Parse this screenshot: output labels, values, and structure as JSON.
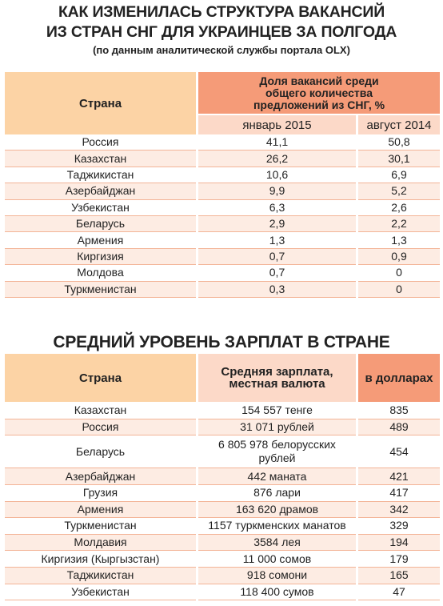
{
  "header": {
    "title_lines": [
      "КАК ИЗМЕНИЛАСЬ СТРУКТУРА ВАКАНСИЙ",
      "ИЗ СТРАН СНГ ДЛЯ УКРАИНЦЕВ ЗА ПОЛГОДА"
    ],
    "subtitle": "(по данным аналитической службы портала OLX)"
  },
  "table1": {
    "country_header": "Страна",
    "group_header": "Доля вакансий среди общего количества предложений из СНГ, %",
    "sub_headers": [
      "январь 2015",
      "август 2014"
    ],
    "rows": [
      [
        "Россия",
        "41,1",
        "50,8"
      ],
      [
        "Казахстан",
        "26,2",
        "30,1"
      ],
      [
        "Таджикистан",
        "10,6",
        "6,9"
      ],
      [
        "Азербайджан",
        "9,9",
        "5,2"
      ],
      [
        "Узбекистан",
        "6,3",
        "2,6"
      ],
      [
        "Беларусь",
        "2,9",
        "2,2"
      ],
      [
        "Армения",
        "1,3",
        "1,3"
      ],
      [
        "Киргизия",
        "0,7",
        "0,9"
      ],
      [
        "Молдова",
        "0,7",
        "0"
      ],
      [
        "Туркменистан",
        "0,3",
        "0"
      ]
    ]
  },
  "table2": {
    "title": "СРЕДНИЙ УРОВЕНЬ ЗАРПЛАТ В СТРАНЕ",
    "headers": [
      "Страна",
      "Средняя зарплата, местная валюта",
      "в долларах"
    ],
    "rows": [
      [
        "Казахстан",
        "154 557 тенге",
        "835"
      ],
      [
        "Россия",
        "31 071 рублей",
        "489"
      ],
      [
        "Беларусь",
        "6 805 978 белорусских рублей",
        "454"
      ],
      [
        "Азербайджан",
        "442 маната",
        "421"
      ],
      [
        "Грузия",
        "876 лари",
        "417"
      ],
      [
        "Армения",
        "163 620 драмов",
        "342"
      ],
      [
        "Туркменистан",
        "1157 туркменских манатов",
        "329"
      ],
      [
        "Молдавия",
        "3584 лея",
        "194"
      ],
      [
        "Киргизия (Кыргызстан)",
        "11 000 сомов",
        "179"
      ],
      [
        "Таджикистан",
        "918 сомони",
        "165"
      ],
      [
        "Узбекистан",
        "118 400 сумов",
        "47"
      ]
    ]
  }
}
